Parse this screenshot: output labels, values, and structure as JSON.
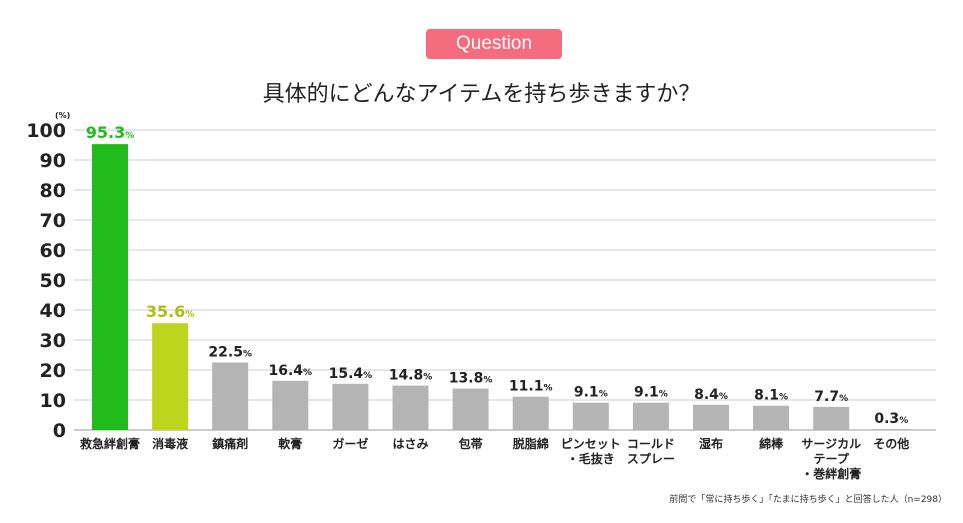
{
  "badge": "Question",
  "title": "具体的にどんなアイテムを持ち歩きますか？",
  "footnote": "前問で「常に持ち歩く」「たまに持ち歩く」と回答した人（n=298）",
  "colors": {
    "badge": "#f46c7e",
    "highlight1": "#22bb1c",
    "highlight2": "#bcd51d",
    "bar": "#b4b4b4",
    "grid": "#cfcfcf"
  },
  "chart_data": {
    "type": "bar",
    "unit_label": "(%)",
    "ylim": [
      0,
      100
    ],
    "yticks": [
      0,
      10,
      20,
      30,
      40,
      50,
      60,
      70,
      80,
      90,
      100
    ],
    "grid": true,
    "categories": [
      [
        "救急絆創膏"
      ],
      [
        "消毒液"
      ],
      [
        "鎮痛剤"
      ],
      [
        "軟膏"
      ],
      [
        "ガーゼ"
      ],
      [
        "はさみ"
      ],
      [
        "包帯"
      ],
      [
        "脱脂綿"
      ],
      [
        "ピンセット",
        "・毛抜き"
      ],
      [
        "コールド",
        "スプレー"
      ],
      [
        "湿布"
      ],
      [
        "綿棒"
      ],
      [
        "サージカル",
        "テープ",
        "・巻絆創膏"
      ],
      [
        "その他"
      ]
    ],
    "values": [
      95.3,
      35.6,
      22.5,
      16.4,
      15.4,
      14.8,
      13.8,
      11.1,
      9.1,
      9.1,
      8.4,
      8.1,
      7.7,
      0.3
    ],
    "value_suffix": "%"
  }
}
